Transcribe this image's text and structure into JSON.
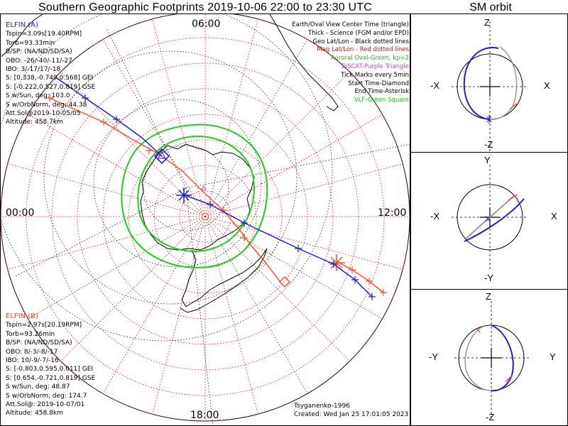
{
  "title": "Southern Geographic Footprints 2019-10-06 22:00 to 23:30 UTC",
  "sm_title": "SM orbit",
  "mlt_labels": {
    "top": "06:00",
    "left": "00:00",
    "right": "12:00",
    "bottom": "18:00"
  },
  "elfin_a": {
    "header": "ELFIN (A)",
    "lines": [
      "Tspin=3.09s[19.40RPM]",
      "Torb=93.33min",
      "B/SP: (NA/ND/SD/SA)",
      "OBO: -26/-40/-11/-27",
      "IBO: 3/-17/17/-18",
      "S: [0.338,-0.749,0.568] GEI",
      "S: [-0.222,0.527,0.819] GSE",
      "S w/Sun, deg: 103.0",
      "S w/OrbNorm, deg: 44.38",
      "Att.Sol@2019-10-05/05",
      "Altitude: 458.7km"
    ],
    "color": "#1f1fcf"
  },
  "elfin_b": {
    "header": "ELFIN (B)",
    "lines": [
      "Tspin=2.97s[20.19RPM]",
      "Torb=93.26min",
      "B/SP: (NA/ND/SD/SA)",
      "OBO: 8/-3/-8/-17",
      "IBO: 10/-9/-7/-16",
      "S: [-0.803,0.595,0.011] GEI",
      "S: [0.654,-0.721,0.819] GSE",
      "S w/Sun, deg: 48.87",
      "S w/OrbNorm, deg: 174.7",
      "Att.Sol@: 2019-10-07/01",
      "Altitude: 458.8km"
    ],
    "color": "#ff3f1f"
  },
  "legend": [
    {
      "text": "Earth/Oval View Center Time (triangle)",
      "color": "#000000"
    },
    {
      "text": "Thick - Science (FGM and/or EPD)",
      "color": "#000000"
    },
    {
      "text": "Geo Lat/Lon - Black dotted lines",
      "color": "#000000"
    },
    {
      "text": "Mag Lat/Lon - Red dotted lines",
      "color": "#ff0000"
    },
    {
      "text": "Auroral Oval-Green, kp=2",
      "color": "#22bb22"
    },
    {
      "text": "EISCAT-Purple Triangle",
      "color": "#cc44cc"
    },
    {
      "text": "Tick Marks every 5min",
      "color": "#000000"
    },
    {
      "text": "Start Time-Diamond",
      "color": "#000000"
    },
    {
      "text": "End Time-Asterisk",
      "color": "#000000"
    },
    {
      "text": "VLF-Green Square",
      "color": "#22bb22"
    }
  ],
  "footer": {
    "model": "Tsyganenko-1996",
    "created": "Created: Wed Jan 25 17:01:05 2023"
  },
  "sm_panels": [
    {
      "top": "Z",
      "bottom": "-Z",
      "left": "-X",
      "right": "X"
    },
    {
      "top": "Y",
      "bottom": "-Y",
      "left": "-X",
      "right": "X"
    },
    {
      "top": "Z",
      "bottom": "-Z",
      "left": "-Y",
      "right": "Y"
    }
  ],
  "colors": {
    "mag_grid": "#ff0000",
    "geo_grid": "#000000",
    "oval": "#22cc22",
    "track_a": "#1f1fcf",
    "track_b": "#ff4f2f"
  }
}
